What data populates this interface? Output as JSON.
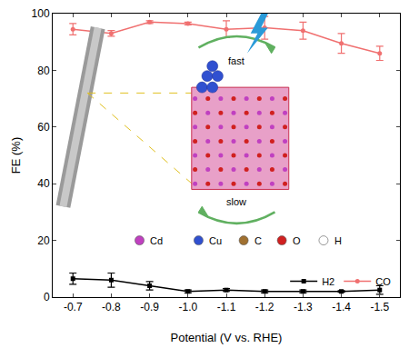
{
  "chart_data": {
    "type": "line",
    "x_label": "Potential (V vs. RHE)",
    "y_label": "FE (%)",
    "categories": [
      "-0.7",
      "-0.8",
      "-0.9",
      "-1.0",
      "-1.1",
      "-1.2",
      "-1.3",
      "-1.4",
      "-1.5"
    ],
    "series": [
      {
        "name": "H2",
        "color": "#000000",
        "marker": "square",
        "values": [
          6.5,
          6,
          4,
          2,
          2.5,
          2,
          2,
          2,
          2.5
        ],
        "errors": [
          2,
          2.5,
          1.5,
          0.5,
          0.5,
          0.5,
          0.5,
          0.3,
          1.5
        ]
      },
      {
        "name": "CO",
        "color": "#f07070",
        "marker": "circle",
        "values": [
          94.5,
          93,
          97,
          96.5,
          94.5,
          95,
          94,
          89.5,
          86
        ],
        "errors": [
          2,
          1,
          0.5,
          0.5,
          3,
          4,
          3,
          3.5,
          2.5
        ]
      }
    ],
    "ylim": [
      0,
      100
    ],
    "yticks": [
      0,
      20,
      40,
      60,
      80,
      100
    ],
    "grid": false,
    "legend": "bottom right",
    "annotations": [
      "fast",
      "slow",
      "Cd",
      "Cu",
      "C",
      "O",
      "H"
    ]
  }
}
